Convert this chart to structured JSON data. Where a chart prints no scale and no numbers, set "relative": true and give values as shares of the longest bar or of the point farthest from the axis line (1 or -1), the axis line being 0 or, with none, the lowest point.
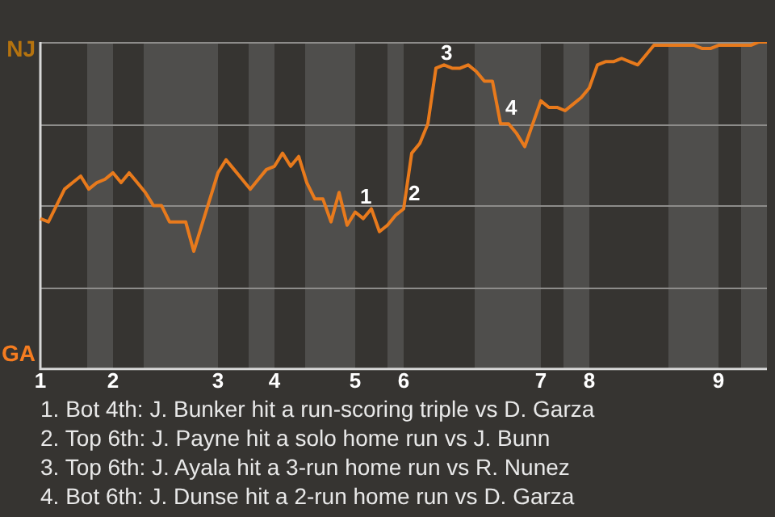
{
  "chart_data": {
    "type": "line",
    "categories": [
      "1",
      null,
      null,
      null,
      null,
      null,
      null,
      null,
      null,
      "2",
      null,
      null,
      null,
      null,
      null,
      null,
      null,
      null,
      null,
      null,
      null,
      null,
      "3",
      null,
      null,
      null,
      null,
      null,
      null,
      "4",
      null,
      null,
      null,
      null,
      null,
      null,
      null,
      null,
      null,
      "5",
      null,
      null,
      null,
      null,
      null,
      "6",
      null,
      null,
      null,
      null,
      null,
      null,
      null,
      null,
      null,
      null,
      null,
      null,
      null,
      null,
      null,
      null,
      "7",
      null,
      null,
      null,
      null,
      null,
      "8",
      null,
      null,
      null,
      null,
      null,
      null,
      null,
      null,
      null,
      null,
      null,
      null,
      null,
      null,
      null,
      "9",
      null,
      null,
      null,
      null,
      null,
      null
    ],
    "relative": true,
    "series": [
      {
        "color": "#e87a1c",
        "values": [
          0.46,
          0.45,
          0.5,
          0.55,
          0.57,
          0.59,
          0.55,
          0.57,
          0.58,
          0.6,
          0.57,
          0.6,
          0.57,
          0.54,
          0.5,
          0.5,
          0.45,
          0.45,
          0.45,
          0.36,
          0.44,
          0.52,
          0.6,
          0.64,
          0.61,
          0.58,
          0.55,
          0.58,
          0.61,
          0.62,
          0.66,
          0.62,
          0.65,
          0.57,
          0.52,
          0.52,
          0.45,
          0.54,
          0.44,
          0.48,
          0.46,
          0.49,
          0.42,
          0.44,
          0.47,
          0.49,
          0.66,
          0.69,
          0.75,
          0.92,
          0.93,
          0.92,
          0.92,
          0.93,
          0.91,
          0.88,
          0.88,
          0.75,
          0.75,
          0.72,
          0.68,
          0.75,
          0.82,
          0.8,
          0.8,
          0.79,
          0.81,
          0.83,
          0.86,
          0.93,
          0.94,
          0.94,
          0.95,
          0.94,
          0.93,
          0.96,
          0.99,
          0.99,
          0.99,
          0.99,
          0.99,
          0.99,
          0.98,
          0.98,
          0.99,
          0.99,
          0.99,
          0.99,
          0.99,
          1,
          1
        ]
      }
    ],
    "grid": "y",
    "marker": "none",
    "line_style": "solid",
    "annotations": [
      "NJ",
      "GA",
      "1",
      "2",
      "3",
      "4",
      "1. Bot 4th: J. Bunker hit a run-scoring triple vs D. Garza",
      "2. Top 6th: J. Payne hit a solo home run vs J. Bunn",
      "3. Top 6th: J. Ayala hit a 3-run home run vs R. Nunez",
      "4. Bot 6th: J. Dunse hit a 2-run home run vs D. Garza"
    ]
  }
}
